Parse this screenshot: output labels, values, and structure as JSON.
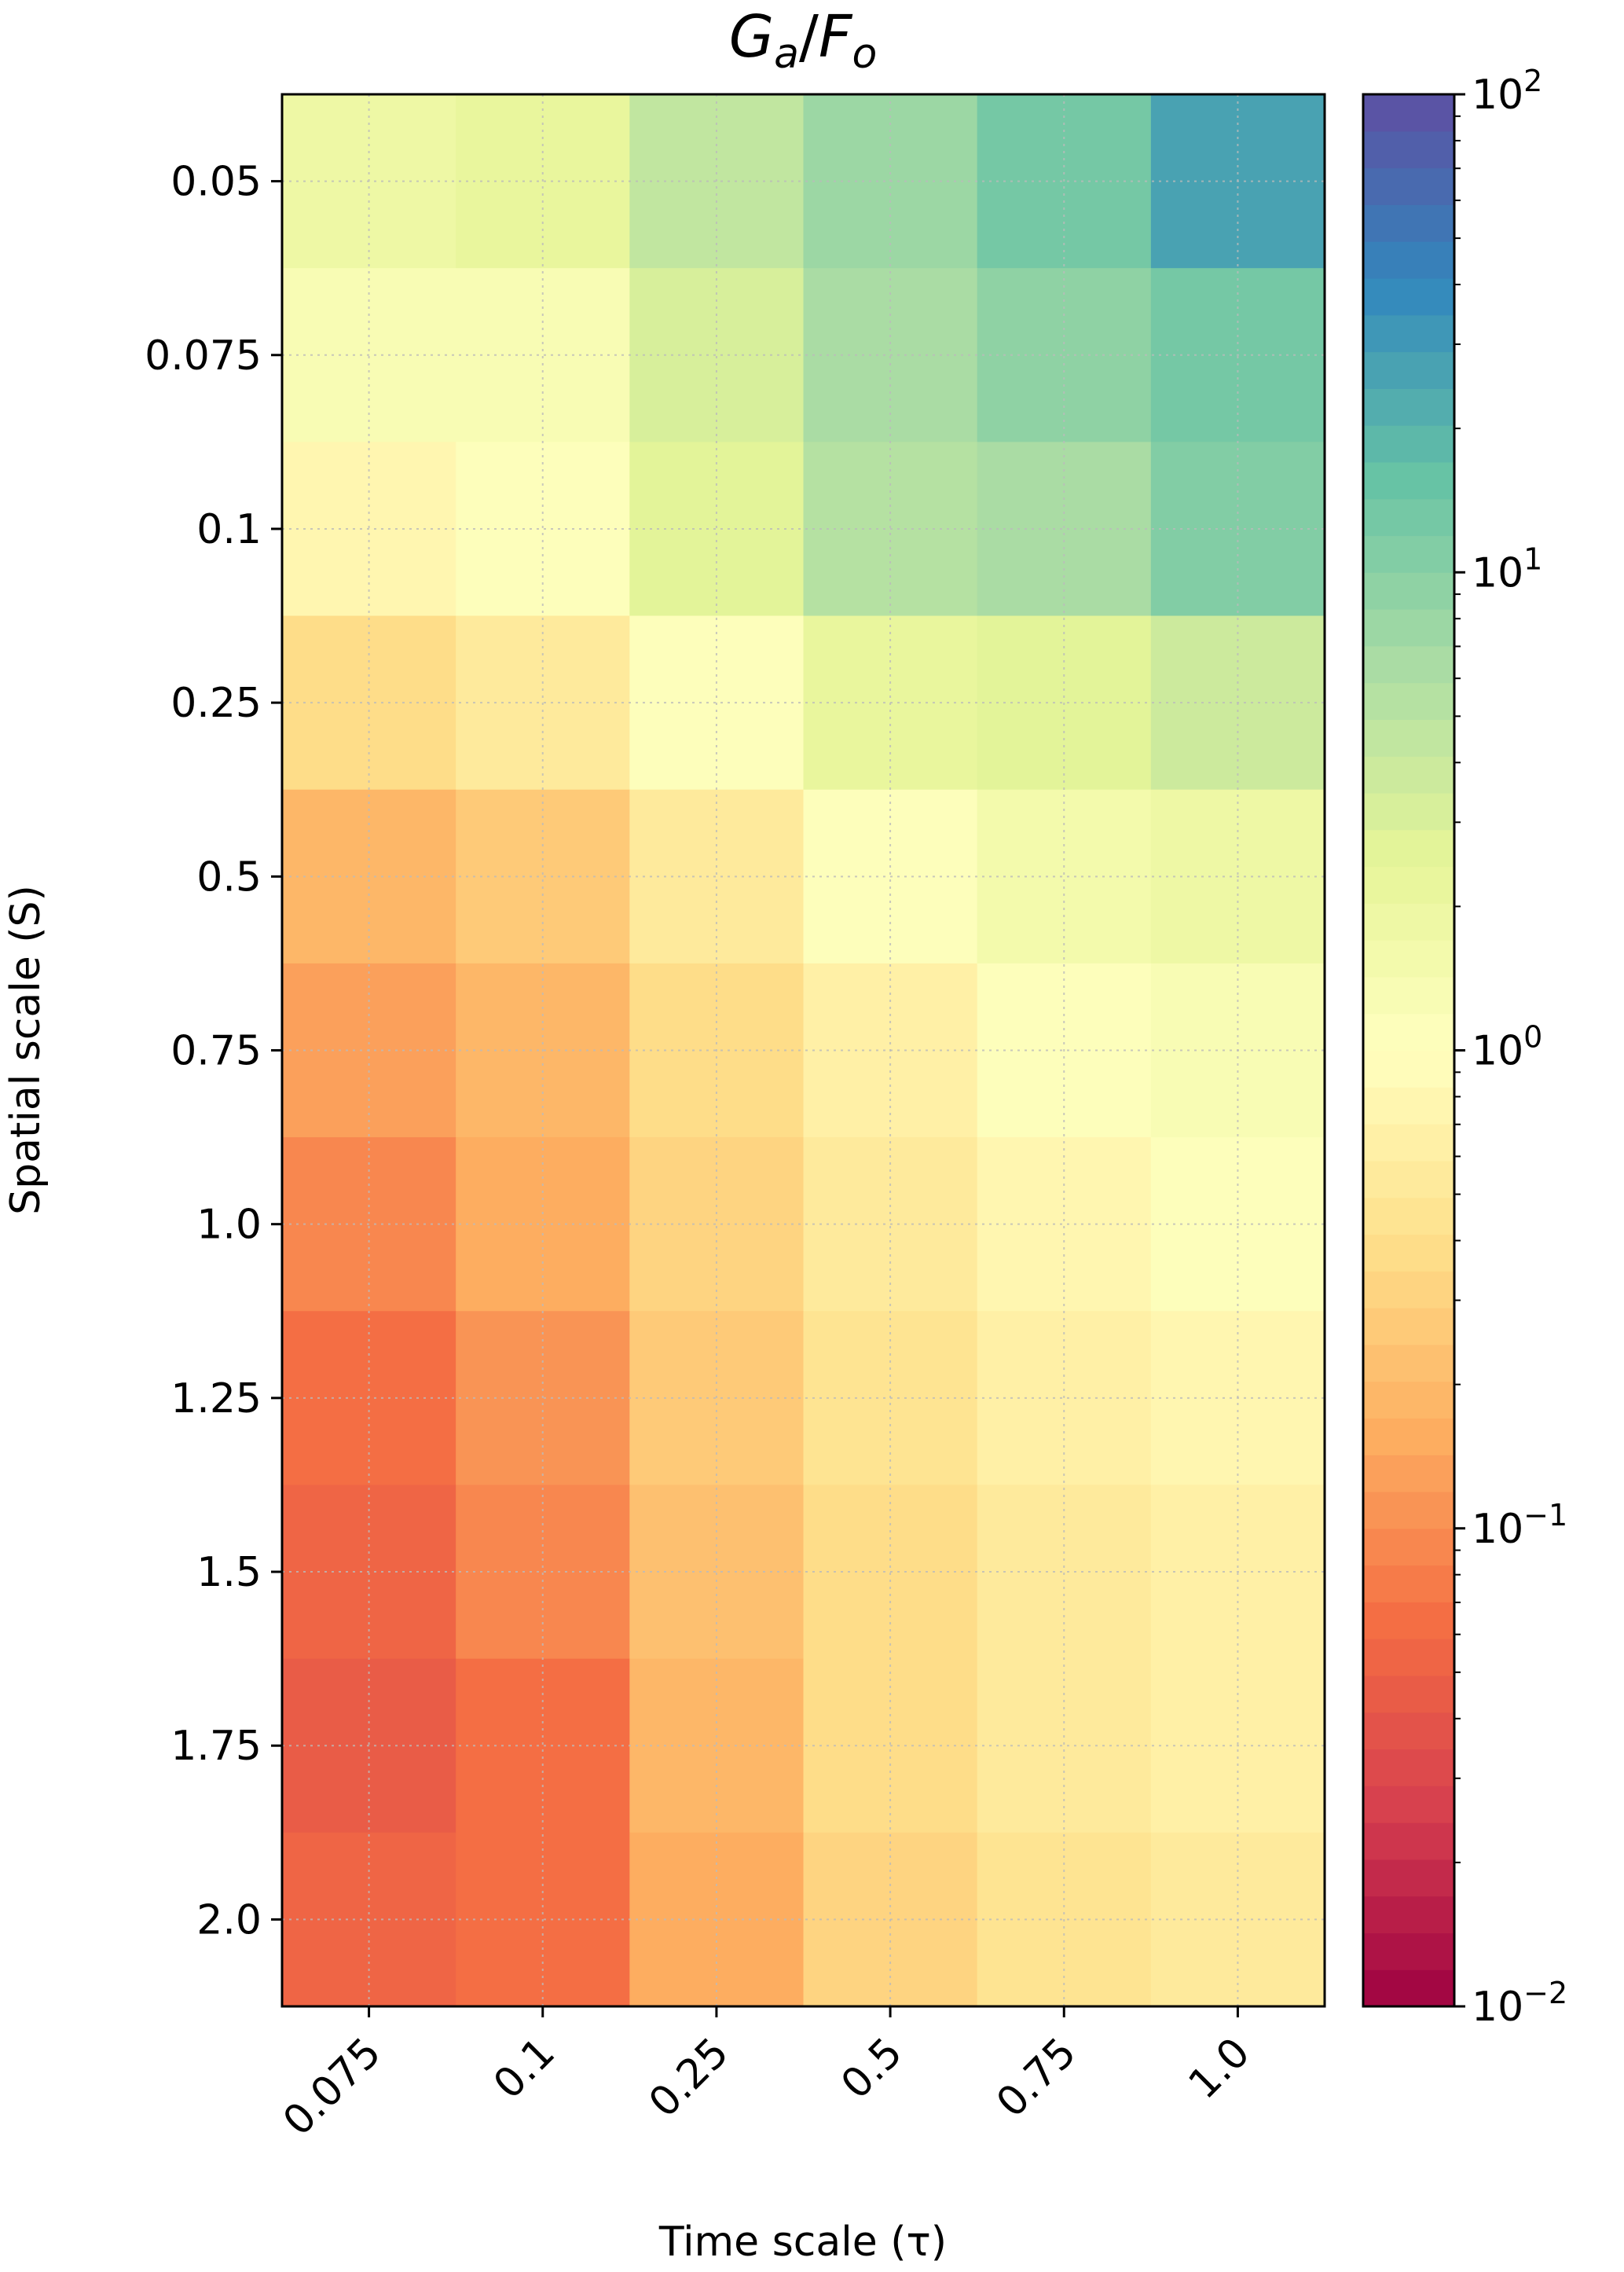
{
  "chart_data": {
    "type": "heatmap",
    "title": [
      "G",
      "a",
      "/",
      "F",
      "o"
    ],
    "x_label": "Time scale (τ)",
    "y_label": "Spatial scale (S)",
    "x_categories": [
      "0.075",
      "0.1",
      "0.25",
      "0.5",
      "0.75",
      "1.0"
    ],
    "y_categories": [
      "0.05",
      "0.075",
      "0.1",
      "0.25",
      "0.5",
      "0.75",
      "1.0",
      "1.25",
      "1.5",
      "1.75",
      "2.0"
    ],
    "values": [
      [
        2,
        2.2,
        4.5,
        8,
        12,
        25
      ],
      [
        1.2,
        1.4,
        3,
        6,
        9,
        14
      ],
      [
        0.8,
        1.0,
        2.5,
        5,
        6,
        10
      ],
      [
        0.35,
        0.5,
        1.0,
        2.2,
        2.7,
        4
      ],
      [
        0.2,
        0.28,
        0.55,
        1.1,
        1.5,
        2
      ],
      [
        0.14,
        0.2,
        0.4,
        0.7,
        1.1,
        1.3
      ],
      [
        0.09,
        0.15,
        0.3,
        0.55,
        0.8,
        1.0
      ],
      [
        0.07,
        0.11,
        0.26,
        0.45,
        0.6,
        0.75
      ],
      [
        0.055,
        0.09,
        0.23,
        0.4,
        0.55,
        0.65
      ],
      [
        0.045,
        0.07,
        0.2,
        0.35,
        0.5,
        0.6
      ],
      [
        0.05,
        0.06,
        0.15,
        0.3,
        0.45,
        0.55
      ]
    ],
    "colormap": "Spectral",
    "zscale": "log",
    "zlim": [
      0.01,
      100
    ],
    "zticks": [
      {
        "value": 0.01,
        "label": "10",
        "exponent": "−2"
      },
      {
        "value": 0.1,
        "label": "10",
        "exponent": "−1"
      },
      {
        "value": 1,
        "label": "10",
        "exponent": "0"
      },
      {
        "value": 10,
        "label": "10",
        "exponent": "1"
      },
      {
        "value": 100,
        "label": "10",
        "exponent": "2"
      }
    ],
    "grid": true
  }
}
